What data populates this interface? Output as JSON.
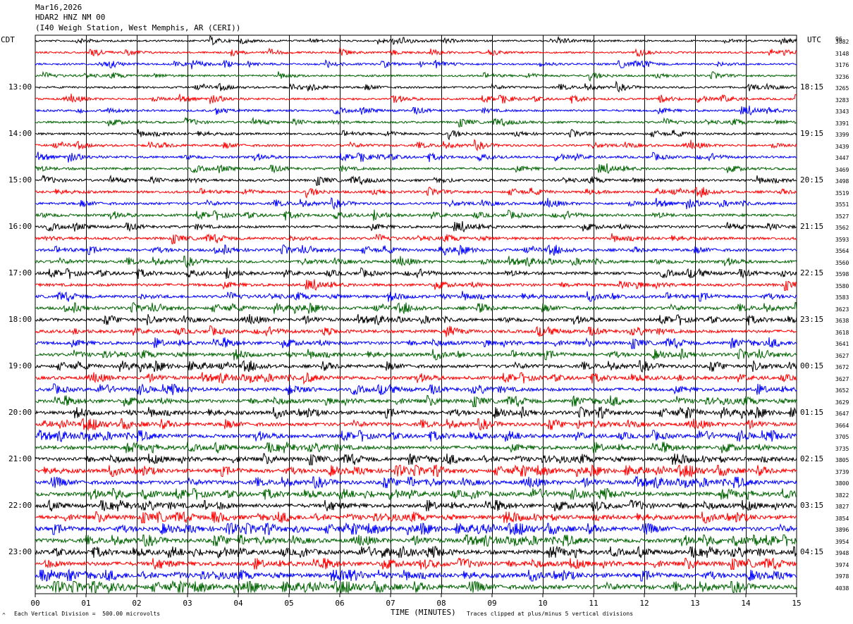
{
  "header": {
    "date": "Mar16,2026",
    "channel": "HDAR2 HNZ NM 00",
    "station": "(I40 Weigh Station, West Memphis, AR (CERI))"
  },
  "left_zone_label": "CDT",
  "right_zone_label": "UTC",
  "corner_label": "96",
  "footer": {
    "scale_note": "Each Vertical Division =  500.00 microvolts",
    "xlabel": "TIME (MINUTES)",
    "clip_note": "Traces clipped at plus/minus 5 vertical divisions",
    "mark": "^"
  },
  "colors": {
    "trace_cycle": [
      "#000000",
      "#ff0000",
      "#0000ff",
      "#006400"
    ],
    "grid": "#000000"
  },
  "chart_data": {
    "type": "line",
    "title": "",
    "xlabel": "TIME (MINUTES)",
    "ylabel": "",
    "xlim": [
      0,
      15
    ],
    "x_ticks": [
      "00",
      "01",
      "02",
      "03",
      "04",
      "05",
      "06",
      "07",
      "08",
      "09",
      "10",
      "11",
      "12",
      "13",
      "14",
      "15"
    ],
    "grid": true,
    "trace_count": 48,
    "traces_per_hour": 4,
    "left_hour_labels": [
      "13:00",
      "14:00",
      "15:00",
      "16:00",
      "17:00",
      "18:00",
      "19:00",
      "20:00",
      "21:00",
      "22:00",
      "23:00"
    ],
    "right_hour_labels": [
      "18:15",
      "19:15",
      "20:15",
      "21:15",
      "22:15",
      "23:15",
      "00:15",
      "01:15",
      "02:15",
      "03:15",
      "04:15"
    ],
    "first_hour_label_trace": 4,
    "trace_values": [
      "3082",
      "3148",
      "3176",
      "3236",
      "3265",
      "3283",
      "3343",
      "3391",
      "3399",
      "3439",
      "3447",
      "3469",
      "3498",
      "3519",
      "3551",
      "3527",
      "3562",
      "3593",
      "3564",
      "3560",
      "3598",
      "3580",
      "3583",
      "3623",
      "3638",
      "3618",
      "3641",
      "3627",
      "3672",
      "3627",
      "3652",
      "3629",
      "3647",
      "3664",
      "3705",
      "3735",
      "3805",
      "3739",
      "3800",
      "3822",
      "3827",
      "3854",
      "3896",
      "3954",
      "3948",
      "3974",
      "3978",
      "4038"
    ]
  }
}
